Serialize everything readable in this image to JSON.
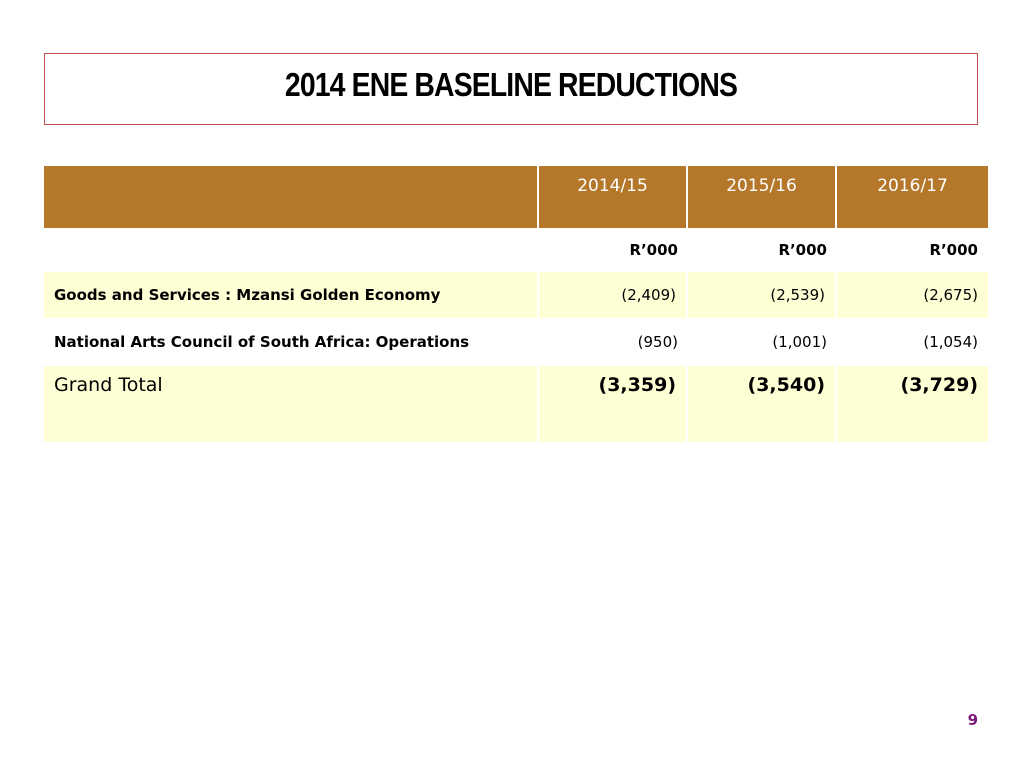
{
  "slide": {
    "title": "2014 ENE BASELINE REDUCTIONS",
    "page_number": "9"
  },
  "table": {
    "columns": [
      "",
      "2014/15",
      "2015/16",
      "2016/17"
    ],
    "units": [
      "",
      "R’000",
      "R’000",
      "R’000"
    ],
    "rows": [
      {
        "label": "Goods and Services :  Mzansi Golden Economy",
        "values": [
          "(2,409)",
          "(2,539)",
          "(2,675)"
        ]
      },
      {
        "label": "National Arts Council of South Africa: Operations",
        "values": [
          "(950)",
          "(1,001)",
          "(1,054)"
        ]
      }
    ],
    "total": {
      "label": "Grand Total",
      "values": [
        "(3,359)",
        "(3,540)",
        "(3,729)"
      ]
    }
  },
  "colors": {
    "header_bg": "#b5782b",
    "row_highlight_bg": "#ffffd6",
    "title_border": "#c0504d",
    "page_number": "#7b1a7b"
  }
}
